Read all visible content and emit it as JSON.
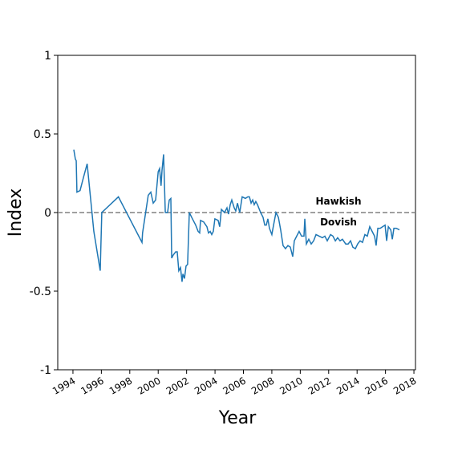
{
  "chart_data": {
    "type": "line",
    "xlabel": "Year",
    "ylabel": "Index",
    "annotations": [
      "Hawkish",
      "Dovish"
    ],
    "hline": 0,
    "hline_color": "#808080",
    "xlim": [
      1992.93,
      2018.11
    ],
    "ylim": [
      -1,
      1
    ],
    "xticks": [
      1994,
      1996,
      1998,
      2000,
      2002,
      2004,
      2006,
      2008,
      2010,
      2012,
      2014,
      2016,
      2018
    ],
    "yticks": [
      -1,
      -0.5,
      0,
      0.5,
      1
    ],
    "series": [
      {
        "name": "Index",
        "color": "#1f77b4",
        "x": [
          1994.06,
          1994.17,
          1994.23,
          1994.28,
          1994.5,
          1994.73,
          1995.0,
          1995.47,
          1995.92,
          1996.03,
          1997.2,
          1998.86,
          1998.9,
          1999.3,
          1999.48,
          1999.65,
          1999.82,
          2000.0,
          2000.1,
          2000.2,
          2000.27,
          2000.38,
          2000.5,
          2000.66,
          2000.78,
          2000.89,
          2000.95,
          2001.06,
          2001.23,
          2001.34,
          2001.45,
          2001.57,
          2001.68,
          2001.74,
          2001.85,
          2001.96,
          2002.07,
          2002.19,
          2002.41,
          2002.64,
          2002.81,
          2002.92,
          2002.98,
          2003.2,
          2003.43,
          2003.54,
          2003.66,
          2003.77,
          2003.88,
          2003.99,
          2004.22,
          2004.33,
          2004.45,
          2004.67,
          2004.84,
          2004.95,
          2005.07,
          2005.18,
          2005.35,
          2005.46,
          2005.58,
          2005.74,
          2005.91,
          2006.14,
          2006.31,
          2006.42,
          2006.54,
          2006.65,
          2006.76,
          2006.87,
          2006.99,
          2007.21,
          2007.38,
          2007.5,
          2007.61,
          2007.72,
          2007.83,
          2008.0,
          2008.12,
          2008.29,
          2008.46,
          2008.62,
          2008.79,
          2008.96,
          2009.13,
          2009.3,
          2009.47,
          2009.58,
          2009.75,
          2009.92,
          2010.09,
          2010.26,
          2010.32,
          2010.43,
          2010.6,
          2010.77,
          2010.94,
          2011.11,
          2011.33,
          2011.56,
          2011.73,
          2011.9,
          2012.13,
          2012.3,
          2012.47,
          2012.63,
          2012.8,
          2012.97,
          2013.2,
          2013.37,
          2013.54,
          2013.7,
          2013.88,
          2014.04,
          2014.21,
          2014.38,
          2014.55,
          2014.72,
          2014.89,
          2015.06,
          2015.23,
          2015.34,
          2015.46,
          2015.63,
          2015.8,
          2015.97,
          2016.08,
          2016.2,
          2016.37,
          2016.48,
          2016.59,
          2016.76,
          2016.98
        ],
        "values": [
          0.4,
          0.34,
          0.33,
          0.13,
          0.14,
          0.22,
          0.31,
          -0.12,
          -0.37,
          0.0,
          0.1,
          -0.19,
          -0.13,
          0.11,
          0.13,
          0.06,
          0.08,
          0.26,
          0.28,
          0.17,
          0.27,
          0.37,
          0.0,
          0.0,
          0.08,
          0.09,
          -0.29,
          -0.27,
          -0.25,
          -0.25,
          -0.37,
          -0.35,
          -0.44,
          -0.39,
          -0.42,
          -0.34,
          -0.33,
          0.0,
          -0.04,
          -0.08,
          -0.12,
          -0.13,
          -0.05,
          -0.06,
          -0.09,
          -0.13,
          -0.12,
          -0.14,
          -0.12,
          -0.04,
          -0.05,
          -0.09,
          0.02,
          0.0,
          0.03,
          -0.01,
          0.05,
          0.08,
          0.03,
          0.01,
          0.06,
          0.0,
          0.1,
          0.09,
          0.1,
          0.1,
          0.06,
          0.08,
          0.05,
          0.07,
          0.05,
          0.0,
          -0.03,
          -0.08,
          -0.08,
          -0.04,
          -0.1,
          -0.14,
          -0.08,
          0.0,
          -0.03,
          -0.11,
          -0.21,
          -0.23,
          -0.21,
          -0.22,
          -0.28,
          -0.18,
          -0.15,
          -0.12,
          -0.15,
          -0.15,
          -0.04,
          -0.2,
          -0.17,
          -0.2,
          -0.18,
          -0.14,
          -0.15,
          -0.16,
          -0.15,
          -0.18,
          -0.14,
          -0.15,
          -0.18,
          -0.16,
          -0.18,
          -0.17,
          -0.2,
          -0.2,
          -0.18,
          -0.22,
          -0.23,
          -0.2,
          -0.18,
          -0.19,
          -0.14,
          -0.15,
          -0.09,
          -0.12,
          -0.15,
          -0.21,
          -0.1,
          -0.1,
          -0.09,
          -0.08,
          -0.18,
          -0.09,
          -0.11,
          -0.17,
          -0.1,
          -0.1,
          -0.11
        ]
      }
    ]
  }
}
